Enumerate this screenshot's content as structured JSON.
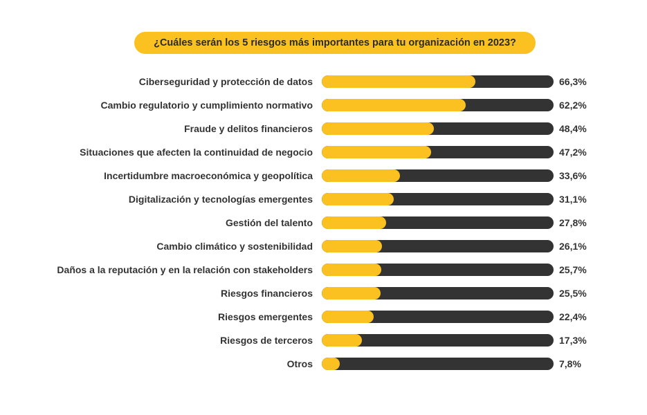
{
  "chart_data": {
    "type": "bar",
    "orientation": "horizontal",
    "title": "¿Cuáles serán los 5 riesgos más importantes para tu organización en 2023?",
    "categories": [
      "Ciberseguridad y protección de datos",
      "Cambio regulatorio y cumplimiento normativo",
      "Fraude y delitos financieros",
      "Situaciones que afecten la continuidad de negocio",
      "Incertidumbre macroeconómica y geopolítica",
      "Digitalización y tecnologías emergentes",
      "Gestión del talento",
      "Cambio climático y sostenibilidad",
      "Daños a la reputación y en la relación con stakeholders",
      "Riesgos financieros",
      "Riesgos emergentes",
      "Riesgos de terceros",
      "Otros"
    ],
    "values": [
      66.3,
      62.2,
      48.4,
      47.2,
      33.6,
      31.1,
      27.8,
      26.1,
      25.7,
      25.5,
      22.4,
      17.3,
      7.8
    ],
    "value_labels": [
      "66,3%",
      "62,2%",
      "48,4%",
      "47,2%",
      "33,6%",
      "31,1%",
      "27,8%",
      "26,1%",
      "25,7%",
      "25,5%",
      "22,4%",
      "17,3%",
      "7,8%"
    ],
    "xlim": [
      0,
      100
    ],
    "grid": false,
    "colors": {
      "fill": "#fbc121",
      "track": "#333333",
      "title_bg": "#fbc121"
    }
  }
}
